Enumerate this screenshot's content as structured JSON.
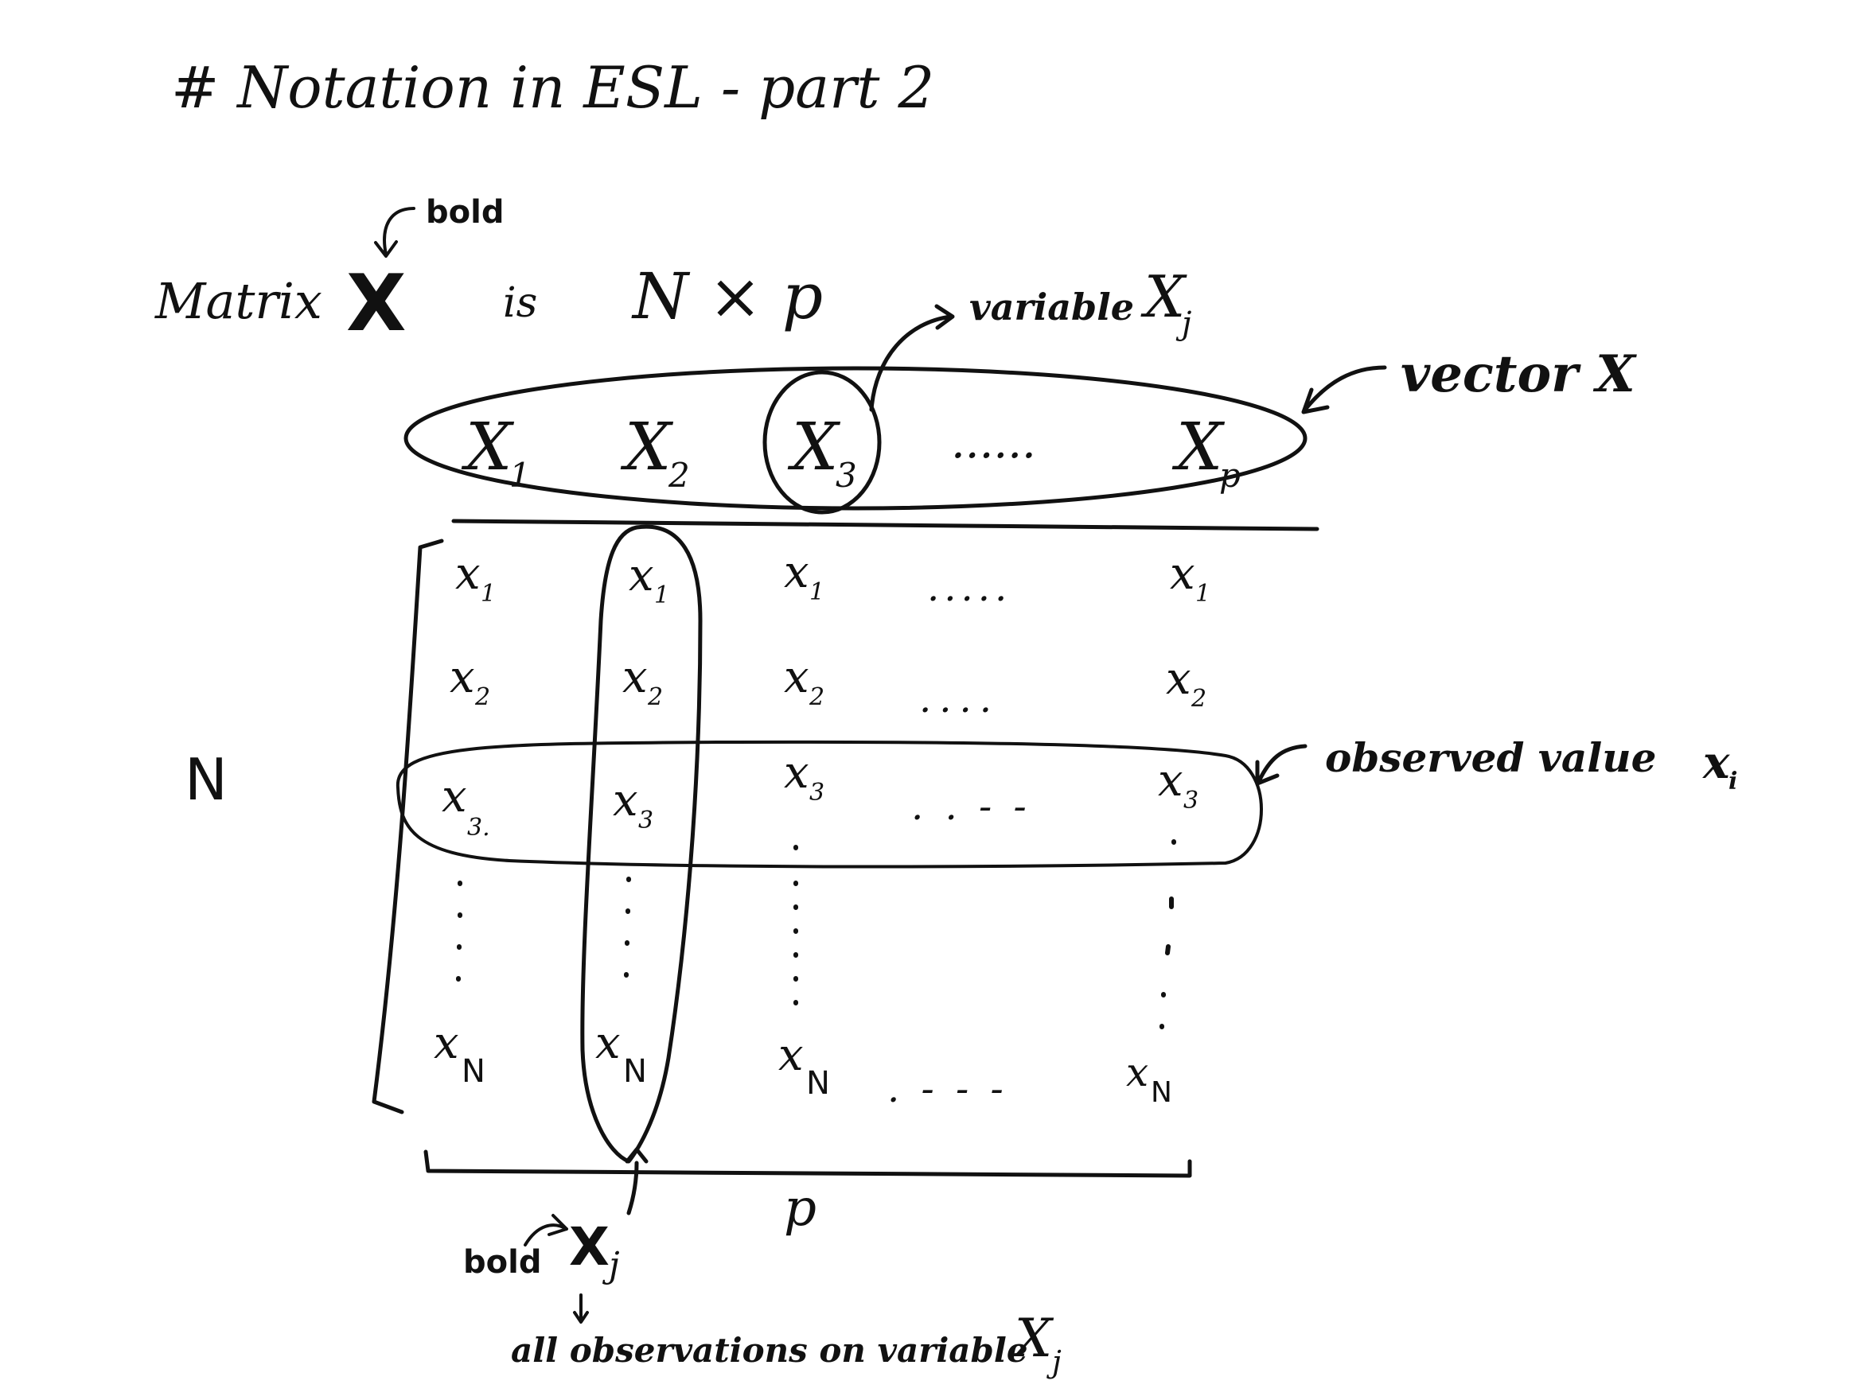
{
  "title": "# Notation in ESL - part 2",
  "matrix_label": "Matrix",
  "matrix_symbol": "X",
  "matrix_bold_note": "bold",
  "matrix_is": "is",
  "matrix_dims": "N × p",
  "variable_note": "variable",
  "variable_symbol": "X",
  "variable_subscript": "j",
  "vector_note": "vector X",
  "header_vars": [
    {
      "base": "X",
      "sub": "1"
    },
    {
      "base": "X",
      "sub": "2"
    },
    {
      "base": "X",
      "sub": "3"
    },
    {
      "base": "X",
      "sub": "p"
    }
  ],
  "header_ellipsis": "......",
  "row_label": "N",
  "observed_note": "observed value",
  "observed_symbol": "x",
  "observed_subscript": "i",
  "columns": [
    [
      {
        "base": "x",
        "sub": "1"
      },
      {
        "base": "x",
        "sub": "2"
      },
      {
        "base": "x",
        "sub": "3."
      },
      {
        "base": "x",
        "sub": "N"
      }
    ],
    [
      {
        "base": "x",
        "sub": "1"
      },
      {
        "base": "x",
        "sub": "2"
      },
      {
        "base": "x",
        "sub": "3"
      },
      {
        "base": "x",
        "sub": "N"
      }
    ],
    [
      {
        "base": "x",
        "sub": "1"
      },
      {
        "base": "x",
        "sub": "2"
      },
      {
        "base": "x",
        "sub": "3"
      },
      {
        "base": "x",
        "sub": "N"
      }
    ],
    [
      {
        "base": "x",
        "sub": "1"
      },
      {
        "base": "x",
        "sub": "2"
      },
      {
        "base": "x",
        "sub": "3"
      },
      {
        "base": "x",
        "sub": "N"
      }
    ]
  ],
  "row_dots": [
    ".....",
    "....",
    ". . - -",
    ". - - -"
  ],
  "col_label": "p",
  "column_bold_note": "bold",
  "column_symbol": "X",
  "column_subscript": "j",
  "column_desc": "all observations on variable",
  "column_desc_symbol": "X",
  "column_desc_subscript": "j"
}
